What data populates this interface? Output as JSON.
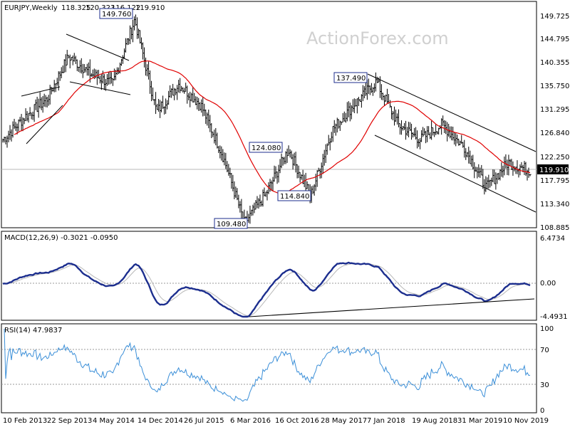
{
  "chart_data": [
    {
      "type": "bar",
      "subtype": "ohlc",
      "symbol": "EURJPY,Weekly",
      "header_values": [
        "118.325",
        "120.323",
        "116.122",
        "119.910"
      ],
      "watermark": "ActionForex.com",
      "last_price_label": "119.910",
      "ylim": [
        108.885,
        152.5
      ],
      "y_ticks": [
        "149.725",
        "144.795",
        "140.355",
        "135.750",
        "131.295",
        "126.840",
        "122.250",
        "117.795",
        "113.340",
        "108.885"
      ],
      "x_tick_labels": [
        "10 Feb 2013",
        "22 Sep 2013",
        "4 May 2014",
        "14 Dec 2014",
        "26 Jul 2015",
        "6 Mar 2016",
        "16 Oct 2016",
        "28 May 2017",
        "7 Jan 2018",
        "19 Aug 2018",
        "31 Mar 2019",
        "10 Nov 2019"
      ],
      "price_path": [
        {
          "x": "10 Feb 2013",
          "y": 126.0
        },
        {
          "x": "Jun 2013",
          "y": 130.5
        },
        {
          "x": "22 Sep 2013",
          "y": 134.0
        },
        {
          "x": "Jan 2014",
          "y": 142.5
        },
        {
          "x": "4 May 2014",
          "y": 139.0
        },
        {
          "x": "Aug 2014",
          "y": 137.0
        },
        {
          "x": "14 Dec 2014",
          "y": 149.76
        },
        {
          "x": "Mar 2015",
          "y": 131.5
        },
        {
          "x": "26 Jul 2015",
          "y": 137.0
        },
        {
          "x": "Oct 2015",
          "y": 133.0
        },
        {
          "x": "6 Mar 2016",
          "y": 123.0
        },
        {
          "x": "Jun 2016",
          "y": 109.48
        },
        {
          "x": "16 Oct 2016",
          "y": 115.5
        },
        {
          "x": "Dec 2016",
          "y": 124.08
        },
        {
          "x": "Apr 2017",
          "y": 114.84
        },
        {
          "x": "28 May 2017",
          "y": 128.0
        },
        {
          "x": "Oct 2017",
          "y": 133.0
        },
        {
          "x": "7 Jan 2018",
          "y": 137.49
        },
        {
          "x": "Apr 2018",
          "y": 129.0
        },
        {
          "x": "19 Aug 2018",
          "y": 126.0
        },
        {
          "x": "Nov 2018",
          "y": 129.0
        },
        {
          "x": "31 Mar 2019",
          "y": 124.5
        },
        {
          "x": "Aug 2019",
          "y": 116.5
        },
        {
          "x": "10 Nov 2019",
          "y": 121.5
        },
        {
          "x": "Jan 2020",
          "y": 119.91
        }
      ],
      "annotations": [
        "149.760",
        "137.490",
        "124.080",
        "114.840",
        "109.480"
      ]
    },
    {
      "type": "line",
      "indicator": "MACD(12,26,9) -0.3021 -0.0950",
      "y_ticks": [
        "6.4734",
        "0.00",
        "-4.4931"
      ],
      "ylim": [
        -4.4931,
        6.4734
      ]
    },
    {
      "type": "line",
      "indicator": "RSI(14) 47.9837",
      "y_ticks": [
        "100",
        "70",
        "30",
        "0"
      ],
      "ylim": [
        0,
        100
      ],
      "levels": [
        70,
        30
      ]
    }
  ]
}
